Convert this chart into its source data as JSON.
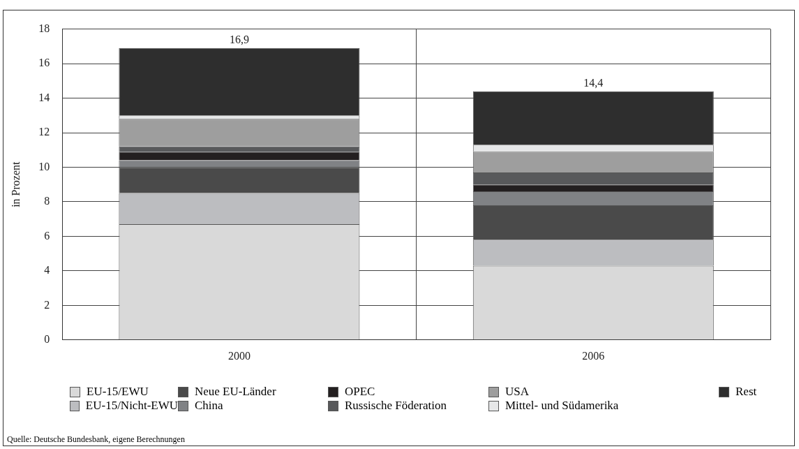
{
  "chart_data": {
    "type": "bar",
    "stacked": true,
    "ylabel": "in Prozent",
    "categories": [
      "2000",
      "2006"
    ],
    "series": [
      {
        "name": "EU-15/EWU",
        "color": "#d9d9d9",
        "values": [
          6.7,
          4.3
        ]
      },
      {
        "name": "EU-15/Nicht-EWU",
        "color": "#bcbdc0",
        "values": [
          1.8,
          1.5
        ]
      },
      {
        "name": "Neue EU-Länder",
        "color": "#4a4a4a",
        "values": [
          1.5,
          2.0
        ]
      },
      {
        "name": "China",
        "color": "#808285",
        "values": [
          0.4,
          0.8
        ]
      },
      {
        "name": "OPEC",
        "color": "#231f20",
        "values": [
          0.5,
          0.4
        ]
      },
      {
        "name": "Russische Föderation",
        "color": "#58595b",
        "values": [
          0.3,
          0.7
        ]
      },
      {
        "name": "USA",
        "color": "#9e9e9e",
        "values": [
          1.6,
          1.2
        ]
      },
      {
        "name": "Mittel- und Südamerika",
        "color": "#e6e7e8",
        "values": [
          0.2,
          0.4
        ]
      },
      {
        "name": "Rest",
        "color": "#2e2e2e",
        "values": [
          3.9,
          3.1
        ]
      }
    ],
    "totals": [
      "16,9",
      "14,4"
    ],
    "ylim": [
      0,
      18
    ],
    "yticks": [
      0,
      2,
      4,
      6,
      8,
      10,
      12,
      14,
      16,
      18
    ],
    "grid": true,
    "legend": "bottom",
    "annotations": [
      "Quelle: Deutsche Bundesbank, eigene Berechnungen"
    ]
  }
}
